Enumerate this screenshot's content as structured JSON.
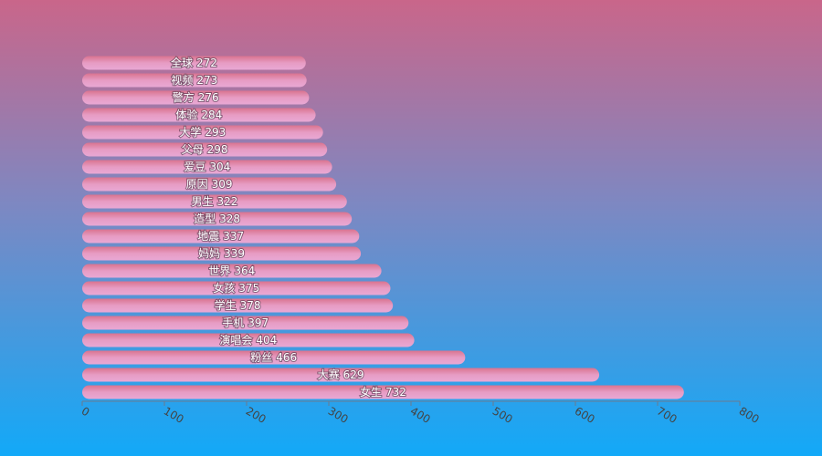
{
  "chart_data": {
    "type": "hbar",
    "categories": [
      "全球",
      "视频",
      "警方",
      "体验",
      "大学",
      "父母",
      "爱豆",
      "原因",
      "男生",
      "造型",
      "地震",
      "妈妈",
      "世界",
      "女孩",
      "学生",
      "手机",
      "演唱会",
      "粉丝",
      "大赛",
      "女生"
    ],
    "values": [
      272,
      273,
      276,
      284,
      293,
      298,
      304,
      309,
      322,
      328,
      337,
      339,
      364,
      375,
      378,
      397,
      404,
      466,
      629,
      732
    ],
    "xlim": [
      0,
      800
    ],
    "xticks": [
      0,
      100,
      200,
      300,
      400,
      500,
      600,
      700,
      800
    ],
    "color": "#e59ac6"
  }
}
